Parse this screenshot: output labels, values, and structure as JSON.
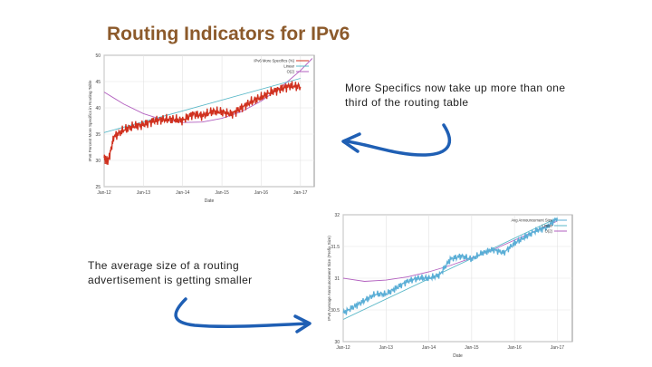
{
  "slide": {
    "title": "Routing Indicators for IPv6",
    "note_top": "More Specifics now take up more than one third of the routing table",
    "note_bottom": "The average size of a routing advertisement is getting smaller"
  },
  "colors": {
    "title": "#8c5a2b",
    "series": "#d0311f",
    "series2": "#5aaed6",
    "linear": "#5ab8c8",
    "exp": "#b25fbf",
    "arrow": "#1f5fb4"
  },
  "icons": [
    "arrow-left-curved-icon",
    "arrow-right-curved-icon"
  ],
  "chart_data": [
    {
      "type": "line",
      "xlabel": "Date",
      "ylabel": "IPv6 Percent More Specifics in Routing Table",
      "x_ticks": [
        "Jan-12",
        "Jan-13",
        "Jan-14",
        "Jan-15",
        "Jan-16",
        "Jan-17"
      ],
      "y_ticks": [
        "25",
        "30",
        "35",
        "40",
        "45",
        "50"
      ],
      "ylim": [
        25,
        50
      ],
      "legend": [
        "IPv6 More Specifics (%)",
        "Linear",
        "O(2)"
      ],
      "legend_position": "top-right",
      "series": [
        {
          "name": "IPv6 More Specifics (%)",
          "x": [
            2012.0,
            2012.1,
            2012.25,
            2012.5,
            2012.75,
            2013.0,
            2013.25,
            2013.5,
            2013.75,
            2014.0,
            2014.25,
            2014.5,
            2014.75,
            2015.0,
            2015.25,
            2015.5,
            2015.75,
            2016.0,
            2016.25,
            2016.5,
            2016.75,
            2017.0
          ],
          "y": [
            30.5,
            29.8,
            34.5,
            35.8,
            36.5,
            36.8,
            37.5,
            37.8,
            37.8,
            37.6,
            38.8,
            38.5,
            39.3,
            39.2,
            38.8,
            40.0,
            41.2,
            42.0,
            43.0,
            43.6,
            44.2,
            44.0
          ]
        },
        {
          "name": "Linear",
          "x": [
            2012.0,
            2017.0
          ],
          "y": [
            35.3,
            45.6
          ]
        },
        {
          "name": "O(2)",
          "x": [
            2012.0,
            2012.5,
            2013.0,
            2013.5,
            2014.0,
            2014.5,
            2015.0,
            2015.5,
            2016.0,
            2016.5,
            2017.0,
            2017.3
          ],
          "y": [
            43.0,
            40.7,
            38.9,
            37.7,
            37.2,
            37.3,
            38.0,
            39.3,
            41.3,
            43.9,
            47.1,
            49.4
          ]
        }
      ]
    },
    {
      "type": "line",
      "xlabel": "Date",
      "ylabel": "IPv6 Average Announcement Size (Prefix Size)",
      "x_ticks": [
        "Jan-12",
        "Jan-13",
        "Jan-14",
        "Jan-15",
        "Jan-16",
        "Jan-17"
      ],
      "y_ticks": [
        "30",
        "30.5",
        "31",
        "31.5",
        "32"
      ],
      "ylim": [
        30,
        32
      ],
      "legend": [
        "Avg Announcement Size",
        "Linear",
        "O(2)"
      ],
      "legend_position": "top-right",
      "series": [
        {
          "name": "Avg Announcement Size",
          "x": [
            2012.0,
            2012.25,
            2012.5,
            2012.75,
            2013.0,
            2013.25,
            2013.5,
            2013.75,
            2014.0,
            2014.25,
            2014.5,
            2014.75,
            2015.0,
            2015.25,
            2015.5,
            2015.75,
            2016.0,
            2016.25,
            2016.5,
            2016.75,
            2017.0
          ],
          "y": [
            30.45,
            30.55,
            30.65,
            30.75,
            30.75,
            30.85,
            30.95,
            31.0,
            31.0,
            31.05,
            31.3,
            31.35,
            31.3,
            31.4,
            31.45,
            31.4,
            31.55,
            31.65,
            31.75,
            31.8,
            31.95
          ]
        },
        {
          "name": "Linear",
          "x": [
            2012.0,
            2017.0
          ],
          "y": [
            30.35,
            31.95
          ]
        },
        {
          "name": "O(2)",
          "x": [
            2012.0,
            2012.5,
            2013.0,
            2013.5,
            2014.0,
            2014.5,
            2015.0,
            2015.5,
            2016.0,
            2016.5,
            2017.0
          ],
          "y": [
            31.0,
            30.95,
            30.97,
            31.02,
            31.1,
            31.2,
            31.32,
            31.45,
            31.6,
            31.75,
            31.9
          ]
        }
      ]
    }
  ]
}
